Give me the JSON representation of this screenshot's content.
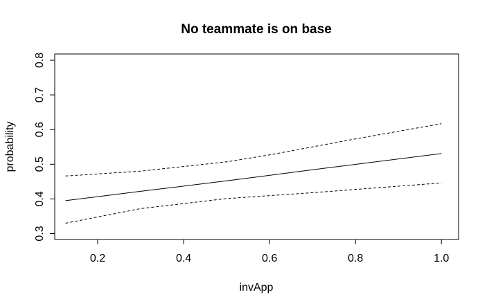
{
  "chart_data": {
    "type": "line",
    "title": "No teammate is on base",
    "xlabel": "invApp",
    "ylabel": "probability",
    "xlim": [
      0.1,
      1.04
    ],
    "ylim": [
      0.283,
      0.818
    ],
    "x_ticks": [
      0.2,
      0.4,
      0.6,
      0.8,
      1.0
    ],
    "x_tick_labels": [
      "0.2",
      "0.4",
      "0.6",
      "0.8",
      "1.0"
    ],
    "y_ticks": [
      0.3,
      0.4,
      0.5,
      0.6,
      0.7,
      0.8
    ],
    "y_tick_labels": [
      "0.3",
      "0.4",
      "0.5",
      "0.6",
      "0.7",
      "0.8"
    ],
    "grid": false,
    "legend": "none",
    "series": [
      {
        "style": "solid",
        "color": "#000000",
        "x": [
          0.125,
          0.3,
          0.5,
          0.7,
          1.0
        ],
        "y": [
          0.395,
          0.422,
          0.452,
          0.484,
          0.531
        ]
      },
      {
        "style": "dashed",
        "color": "#000000",
        "x": [
          0.125,
          0.3,
          0.5,
          0.6,
          0.8,
          1.0
        ],
        "y": [
          0.466,
          0.48,
          0.507,
          0.527,
          0.573,
          0.617
        ]
      },
      {
        "style": "dashed",
        "color": "#000000",
        "x": [
          0.125,
          0.3,
          0.5,
          0.7,
          1.0
        ],
        "y": [
          0.33,
          0.372,
          0.401,
          0.418,
          0.446
        ]
      }
    ]
  }
}
